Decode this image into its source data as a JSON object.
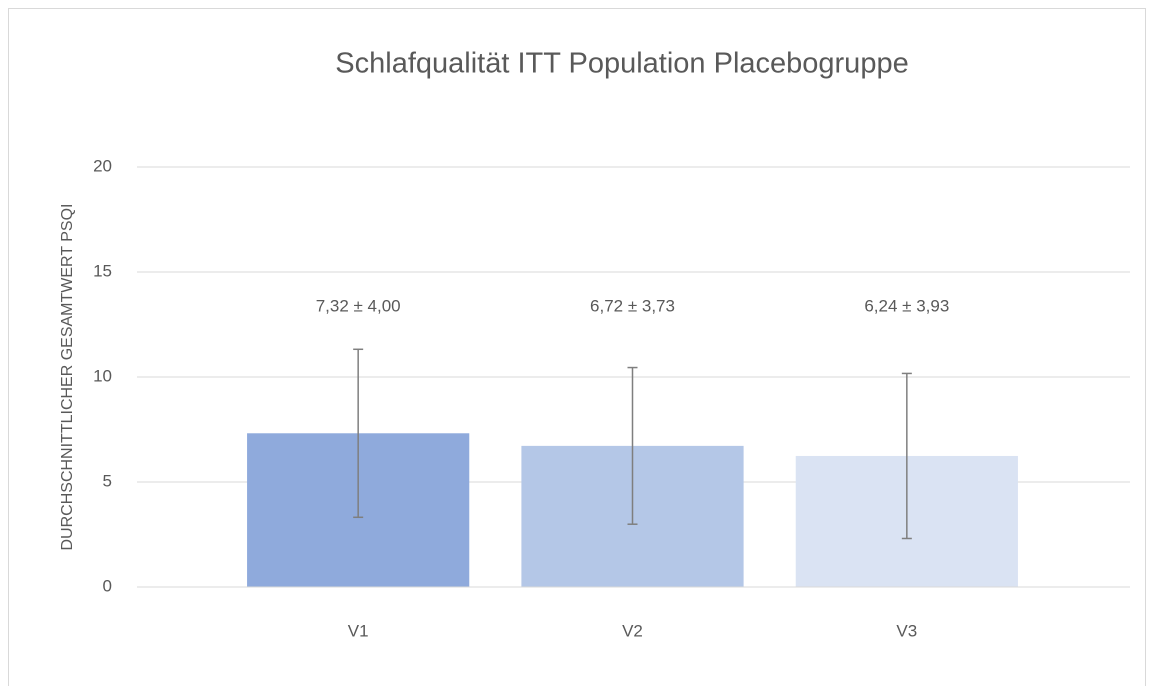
{
  "chart_data": {
    "type": "bar",
    "title": "Schlafqualität ITT Population Placebogruppe",
    "y_label": "DURCHSCHNITTLICHER GESAMTWERT PSQI",
    "categories": [
      "V1",
      "V2",
      "V3"
    ],
    "values": [
      7.32,
      6.72,
      6.24
    ],
    "errors": [
      4.0,
      3.73,
      3.93
    ],
    "value_labels": [
      "7,32 ± 4,00",
      "6,72 ± 3,73",
      "6,24 ± 3,93"
    ],
    "colors": [
      "#8faadc",
      "#b4c7e7",
      "#dae3f3"
    ],
    "error_color": "#7f7f7f",
    "ylim": [
      0,
      20
    ],
    "yticks": [
      0,
      5,
      10,
      15,
      20
    ],
    "grid": true
  }
}
